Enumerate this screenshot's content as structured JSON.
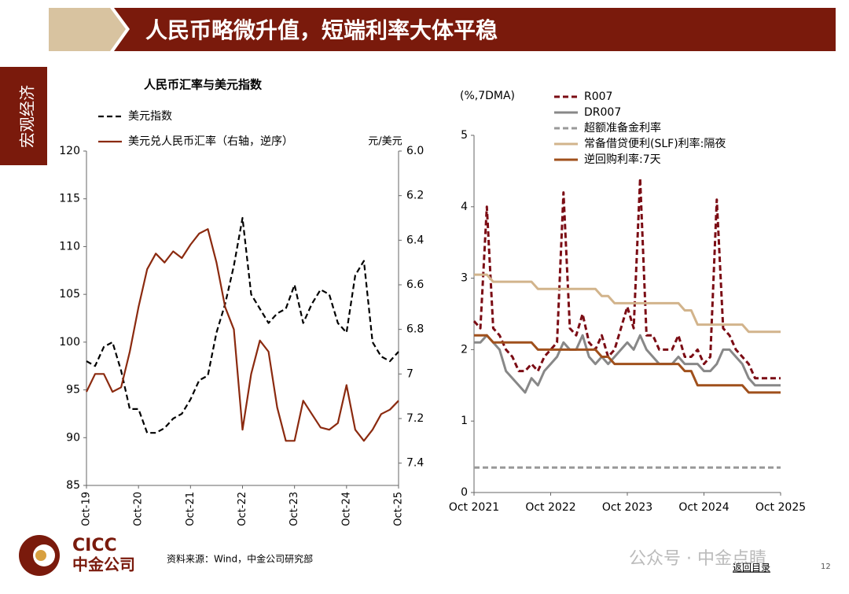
{
  "header": {
    "title": "人民币略微升值，短端利率大体平稳"
  },
  "side_label": "宏观经济",
  "chart_data": [
    {
      "type": "line",
      "title": "人民币汇率与美元指数",
      "y2_label": "元/美元",
      "x": [
        "2019-10",
        "2019-12",
        "2020-02",
        "2020-04",
        "2020-06",
        "2020-08",
        "2020-10",
        "2020-12",
        "2021-02",
        "2021-04",
        "2021-06",
        "2021-08",
        "2021-10",
        "2021-12",
        "2022-02",
        "2022-04",
        "2022-06",
        "2022-08",
        "2022-10",
        "2022-12",
        "2023-02",
        "2023-04",
        "2023-06",
        "2023-08",
        "2023-10",
        "2023-12",
        "2024-02",
        "2024-04",
        "2024-06",
        "2024-08",
        "2024-10",
        "2024-12",
        "2025-02",
        "2025-04",
        "2025-06",
        "2025-08",
        "2025-10"
      ],
      "series": [
        {
          "name": "美元指数",
          "color": "#000000",
          "dash": true,
          "values": [
            98,
            97.5,
            99.5,
            100,
            97,
            93,
            93,
            90.5,
            90.5,
            91,
            92,
            92.5,
            94,
            96,
            96.5,
            101,
            104,
            108,
            113,
            105,
            103.5,
            102,
            103,
            103.5,
            106,
            102,
            104,
            105.5,
            105,
            102,
            101,
            107,
            108.5,
            100,
            98.5,
            98,
            99
          ]
        },
        {
          "name": "美元兑人民币汇率（右轴，逆序）",
          "color": "#8b2a0f",
          "axis": "y2",
          "values": [
            7.08,
            7.0,
            7.0,
            7.08,
            7.06,
            6.9,
            6.7,
            6.53,
            6.46,
            6.5,
            6.45,
            6.48,
            6.42,
            6.37,
            6.35,
            6.5,
            6.7,
            6.8,
            7.25,
            7.0,
            6.85,
            6.9,
            7.15,
            7.3,
            7.3,
            7.12,
            7.18,
            7.24,
            7.25,
            7.22,
            7.05,
            7.25,
            7.3,
            7.25,
            7.18,
            7.16,
            7.12
          ]
        }
      ],
      "ylim": [
        85,
        120
      ],
      "yticks": [
        85,
        90,
        95,
        100,
        105,
        110,
        115,
        120
      ],
      "y2lim": [
        6.0,
        7.5
      ],
      "y2_reversed": true,
      "y2ticks": [
        {
          "value": 6,
          "label": "6.0"
        },
        6.2,
        6.4,
        6.6,
        6.8,
        7.0,
        7.2,
        7.4
      ],
      "xticks": [
        {
          "value": "2019-10",
          "label": "Oct-19"
        },
        {
          "value": "2020-10",
          "label": "Oct-20"
        },
        {
          "value": "2021-10",
          "label": "Oct-21"
        },
        {
          "value": "2022-10",
          "label": "Oct-22"
        },
        {
          "value": "2023-10",
          "label": "Oct-23"
        },
        {
          "value": "2024-10",
          "label": "Oct-24"
        },
        {
          "value": "2025-10",
          "label": "Oct-25"
        }
      ]
    },
    {
      "type": "line",
      "y_label": "(%,7DMA)",
      "x": [
        "2021-10",
        "2021-11",
        "2021-12",
        "2022-01",
        "2022-02",
        "2022-03",
        "2022-04",
        "2022-05",
        "2022-06",
        "2022-07",
        "2022-08",
        "2022-09",
        "2022-10",
        "2022-11",
        "2022-12",
        "2023-01",
        "2023-02",
        "2023-03",
        "2023-04",
        "2023-05",
        "2023-06",
        "2023-07",
        "2023-08",
        "2023-09",
        "2023-10",
        "2023-11",
        "2023-12",
        "2024-01",
        "2024-02",
        "2024-03",
        "2024-04",
        "2024-05",
        "2024-06",
        "2024-07",
        "2024-08",
        "2024-09",
        "2024-10",
        "2024-11",
        "2024-12",
        "2025-01",
        "2025-02",
        "2025-03",
        "2025-04",
        "2025-05",
        "2025-06",
        "2025-07",
        "2025-08",
        "2025-09",
        "2025-10"
      ],
      "series": [
        {
          "name": "R007",
          "color": "#7b0c14",
          "dash": true,
          "width": 3,
          "values": [
            2.4,
            2.3,
            4.0,
            2.3,
            2.2,
            2.0,
            1.9,
            1.7,
            1.7,
            1.8,
            1.7,
            1.9,
            2.0,
            2.1,
            4.2,
            2.3,
            2.2,
            2.5,
            2.1,
            2.0,
            2.2,
            1.9,
            2.0,
            2.3,
            2.6,
            2.3,
            4.4,
            2.2,
            2.2,
            2.0,
            2.0,
            2.0,
            2.2,
            1.9,
            1.9,
            2.0,
            1.8,
            1.9,
            4.1,
            2.3,
            2.2,
            2.0,
            1.9,
            1.8,
            1.6,
            1.6,
            1.6,
            1.6,
            1.6
          ]
        },
        {
          "name": "DR007",
          "color": "#888888",
          "width": 3,
          "values": [
            2.1,
            2.1,
            2.2,
            2.1,
            2.0,
            1.7,
            1.6,
            1.5,
            1.4,
            1.6,
            1.5,
            1.7,
            1.8,
            1.9,
            2.1,
            2.0,
            2.0,
            2.2,
            1.9,
            1.8,
            1.9,
            1.8,
            1.9,
            2.0,
            2.1,
            2.0,
            2.2,
            2.0,
            1.9,
            1.8,
            1.8,
            1.8,
            1.9,
            1.8,
            1.8,
            1.8,
            1.7,
            1.7,
            1.8,
            2.0,
            2.0,
            1.9,
            1.8,
            1.6,
            1.5,
            1.5,
            1.5,
            1.5,
            1.5
          ]
        },
        {
          "name": "超额准备金利率",
          "color": "#999999",
          "dash": true,
          "width": 3,
          "values": [
            0.35,
            0.35,
            0.35,
            0.35,
            0.35,
            0.35,
            0.35,
            0.35,
            0.35,
            0.35,
            0.35,
            0.35,
            0.35,
            0.35,
            0.35,
            0.35,
            0.35,
            0.35,
            0.35,
            0.35,
            0.35,
            0.35,
            0.35,
            0.35,
            0.35,
            0.35,
            0.35,
            0.35,
            0.35,
            0.35,
            0.35,
            0.35,
            0.35,
            0.35,
            0.35,
            0.35,
            0.35,
            0.35,
            0.35,
            0.35,
            0.35,
            0.35,
            0.35,
            0.35,
            0.35,
            0.35,
            0.35,
            0.35,
            0.35
          ]
        },
        {
          "name": "常备借贷便利(SLF)利率:隔夜",
          "color": "#d2b48c",
          "width": 3,
          "values": [
            3.05,
            3.05,
            3.05,
            2.95,
            2.95,
            2.95,
            2.95,
            2.95,
            2.95,
            2.95,
            2.85,
            2.85,
            2.85,
            2.85,
            2.85,
            2.85,
            2.85,
            2.85,
            2.85,
            2.85,
            2.75,
            2.75,
            2.65,
            2.65,
            2.65,
            2.65,
            2.65,
            2.65,
            2.65,
            2.65,
            2.65,
            2.65,
            2.65,
            2.55,
            2.55,
            2.35,
            2.35,
            2.35,
            2.35,
            2.35,
            2.35,
            2.35,
            2.35,
            2.25,
            2.25,
            2.25,
            2.25,
            2.25,
            2.25
          ]
        },
        {
          "name": "逆回购利率:7天",
          "color": "#a0501c",
          "width": 3,
          "values": [
            2.2,
            2.2,
            2.2,
            2.1,
            2.1,
            2.1,
            2.1,
            2.1,
            2.1,
            2.1,
            2.0,
            2.0,
            2.0,
            2.0,
            2.0,
            2.0,
            2.0,
            2.0,
            2.0,
            2.0,
            1.9,
            1.9,
            1.8,
            1.8,
            1.8,
            1.8,
            1.8,
            1.8,
            1.8,
            1.8,
            1.8,
            1.8,
            1.8,
            1.7,
            1.7,
            1.5,
            1.5,
            1.5,
            1.5,
            1.5,
            1.5,
            1.5,
            1.5,
            1.4,
            1.4,
            1.4,
            1.4,
            1.4,
            1.4
          ]
        }
      ],
      "ylim": [
        0,
        5
      ],
      "yticks": [
        0,
        1,
        2,
        3,
        4,
        5
      ],
      "xticks": [
        {
          "value": "2021-10",
          "label": "Oct 2021"
        },
        {
          "value": "2022-10",
          "label": "Oct 2022"
        },
        {
          "value": "2023-10",
          "label": "Oct 2023"
        },
        {
          "value": "2024-10",
          "label": "Oct 2024"
        },
        {
          "value": "2025-10",
          "label": "Oct 2025"
        }
      ]
    }
  ],
  "footer": {
    "logo_en": "CICC",
    "logo_cn": "中金公司",
    "source": "资料来源：Wind，中金公司研究部",
    "watermark": "公众号 · 中金点睛",
    "back_link": "返回目录",
    "page_number": "12"
  }
}
